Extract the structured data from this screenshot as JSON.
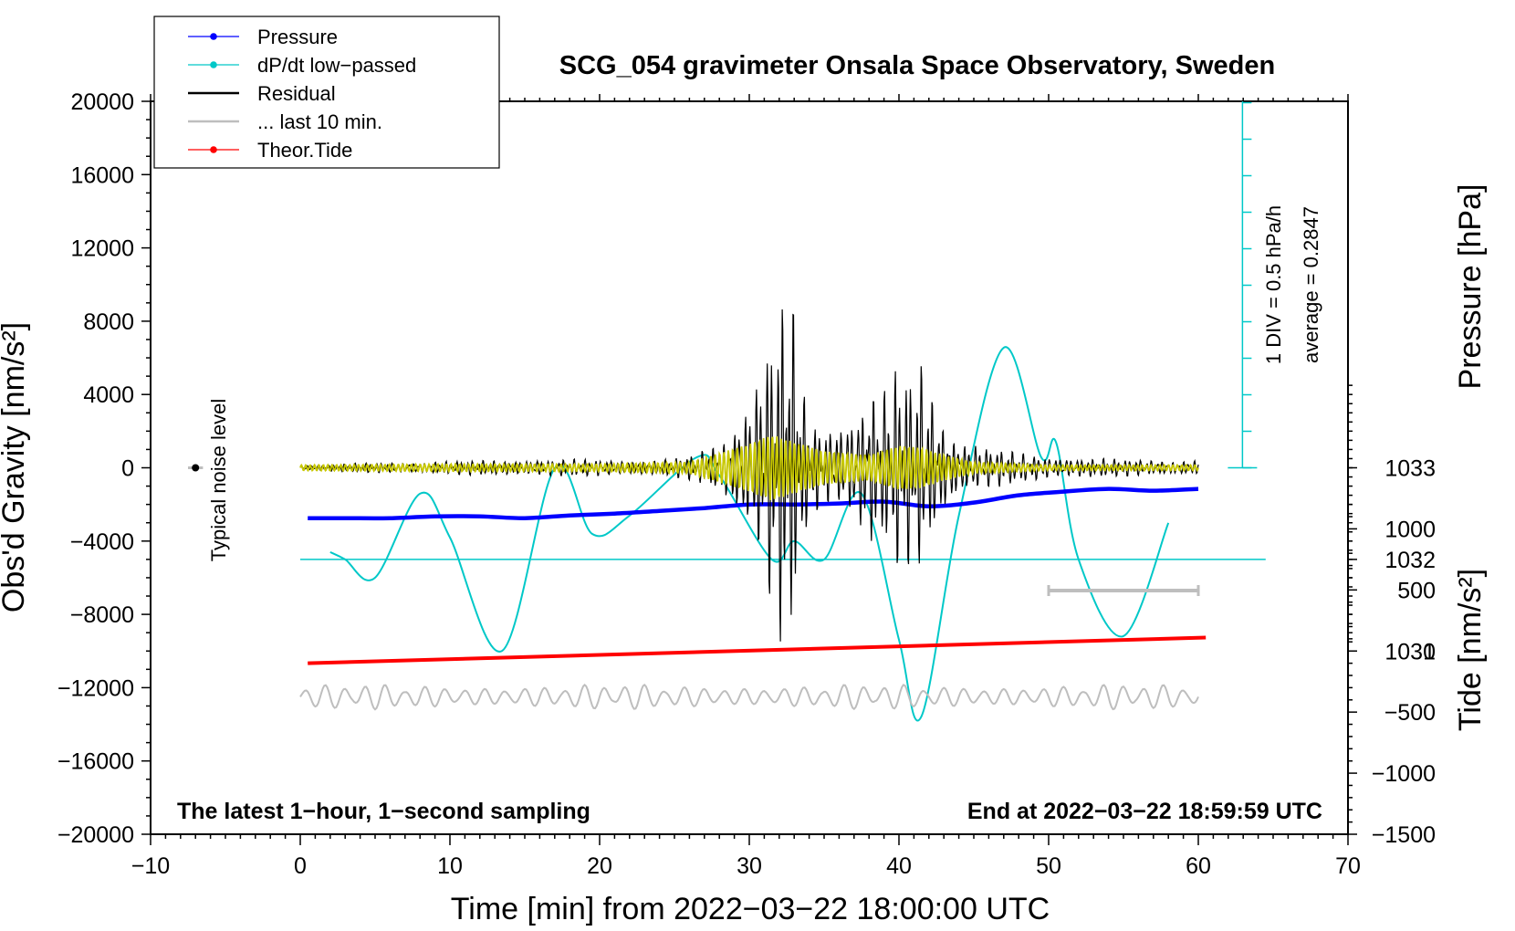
{
  "chart_data": {
    "type": "line",
    "title": "SCG_054 gravimeter Onsala Space Observatory, Sweden",
    "xlabel": "Time [min] from 2022−03−22 18:00:00 UTC",
    "ylabel": "Obs'd Gravity [nm/s²]",
    "ylabel2_pressure": "Pressure [hPa]",
    "ylabel2_tide": "Tide [nm/s²]",
    "xlim": [
      -10,
      70
    ],
    "ylim": [
      -20000,
      20000
    ],
    "pressure_lim": [
      1029,
      1037
    ],
    "tide_lim": [
      -1500,
      4500
    ],
    "x_ticks": [
      -10,
      0,
      10,
      20,
      30,
      40,
      50,
      60,
      70
    ],
    "x_tick_labels": [
      "−10",
      "0",
      "10",
      "20",
      "30",
      "40",
      "50",
      "60",
      "70"
    ],
    "y_ticks": [
      20000,
      16000,
      12000,
      8000,
      4000,
      0,
      -4000,
      -8000,
      -12000,
      -16000,
      -20000
    ],
    "y_tick_labels": [
      "20000",
      "16000",
      "12000",
      "8000",
      "4000",
      "0",
      "−4000",
      "−8000",
      "−12000",
      "−16000",
      "−20000"
    ],
    "pressure_ticks": [
      1033,
      1032,
      1031
    ],
    "pressure_tick_labels": [
      "1033",
      "1032",
      "1031"
    ],
    "tide_ticks": [
      1000,
      500,
      0,
      -500,
      -1000,
      -1500
    ],
    "tide_tick_labels": [
      "1000",
      "500",
      "0",
      "−500",
      "−1000",
      "−1500"
    ],
    "legend": {
      "position": "top-left",
      "entries": [
        {
          "label": "Pressure",
          "color": "#0000ff",
          "marker": true
        },
        {
          "label": "dP/dt low−passed",
          "color": "#00c8c8",
          "marker": true
        },
        {
          "label": "Residual",
          "color": "#000000",
          "marker": false
        },
        {
          "label": "... last 10 min.",
          "color": "#bebebe",
          "marker": false
        },
        {
          "label": "Theor.Tide",
          "color": "#ff0000",
          "marker": true
        }
      ]
    },
    "series": [
      {
        "name": "Pressure",
        "axis": "pressure",
        "color": "#0000ff",
        "x": [
          0.5,
          3,
          6,
          9,
          12,
          15,
          18,
          21,
          24,
          27,
          30,
          33,
          36,
          39,
          42,
          45,
          48,
          51,
          54,
          57,
          60
        ],
        "y": [
          1032.45,
          1032.45,
          1032.45,
          1032.47,
          1032.47,
          1032.45,
          1032.48,
          1032.5,
          1032.53,
          1032.56,
          1032.6,
          1032.6,
          1032.61,
          1032.63,
          1032.58,
          1032.62,
          1032.7,
          1032.74,
          1032.77,
          1032.75,
          1032.77
        ]
      },
      {
        "name": "dP/dt low−passed",
        "axis": "dpdt",
        "color": "#00c8c8",
        "x": [
          2,
          3,
          5,
          8,
          10,
          13.5,
          17,
          19.5,
          22,
          26.5,
          28,
          31.5,
          33,
          35,
          37.5,
          40,
          41.5,
          44,
          47,
          49.5,
          50.5,
          52,
          55,
          58
        ],
        "y": [
          0.2,
          0.0,
          -0.5,
          1.8,
          0.6,
          -2.5,
          2.5,
          0.7,
          1.2,
          2.8,
          2.3,
          0.0,
          0.5,
          0.0,
          1.8,
          -2.2,
          -4.3,
          1.2,
          5.8,
          2.8,
          3.2,
          0.0,
          -2.1,
          1.0
        ]
      },
      {
        "name": "Residual",
        "axis": "gravity",
        "color": "#000000",
        "x": [
          0,
          5,
          10,
          15,
          20,
          24,
          26,
          28,
          29.5,
          30.5,
          31.5,
          32,
          32.5,
          33,
          33.5,
          34,
          35,
          36,
          37,
          38,
          39,
          39.5,
          40,
          41,
          41.5,
          42,
          43,
          44,
          46,
          48,
          50,
          55,
          60
        ],
        "amplitude": [
          150,
          300,
          400,
          500,
          500,
          450,
          700,
          1500,
          3500,
          5500,
          8500,
          10000,
          11000,
          9000,
          5000,
          3000,
          2500,
          2800,
          3500,
          5000,
          4500,
          5500,
          6000,
          5500,
          6500,
          5000,
          3000,
          1800,
          1200,
          900,
          700,
          500,
          450
        ]
      },
      {
        "name": "Residual (band-passed)",
        "axis": "gravity",
        "color": "#c8c800",
        "x": [
          0,
          10,
          20,
          26,
          28,
          30,
          31.5,
          33,
          35,
          38,
          40,
          41.5,
          43,
          45,
          50,
          60
        ],
        "amplitude": [
          150,
          200,
          200,
          300,
          800,
          1300,
          1800,
          1400,
          900,
          700,
          1200,
          1100,
          700,
          300,
          150,
          150
        ]
      },
      {
        "name": "... last 10 min.",
        "axis": "gravity",
        "color": "#bebebe",
        "x": [
          0,
          60
        ],
        "y_center": -12500,
        "amplitude": 700
      },
      {
        "name": "Theor.Tide",
        "axis": "tide",
        "color": "#ff0000",
        "x": [
          0.5,
          60.5
        ],
        "y": [
          -100,
          110
        ]
      }
    ],
    "noise_marker": {
      "x": -7,
      "y": 0,
      "label": "Typical noise level"
    },
    "last10_bar": {
      "x": [
        50,
        60
      ],
      "y": -6700
    },
    "dpdt_scale": {
      "label": "1 DIV = 0.5 hPa/h",
      "average_label": "average = 0.2847"
    },
    "footer_left": "The latest 1−hour, 1−second sampling",
    "footer_right": "End at 2022−03−22 18:59:59 UTC"
  }
}
